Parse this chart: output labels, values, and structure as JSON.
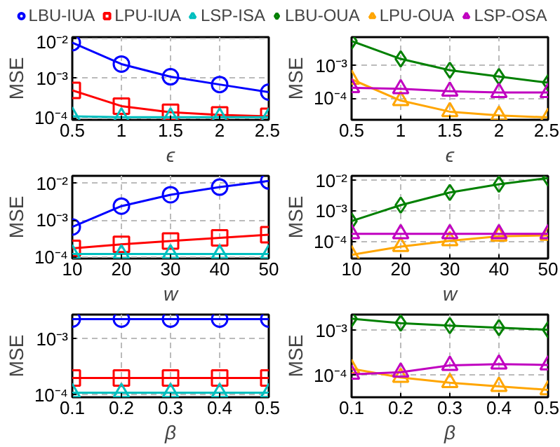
{
  "chart_data": [
    {
      "type": "line",
      "xlabel": "ϵ",
      "ylabel": "MSE",
      "log": "y",
      "grid": true,
      "legend": "top",
      "x": [
        0.5,
        1,
        1.5,
        2,
        2.5
      ],
      "xlim": [
        0.5,
        2.5
      ],
      "xticks": [
        0.5,
        1,
        1.5,
        2,
        2.5
      ],
      "ylim": [
        9e-05,
        0.011
      ],
      "yticks": [
        {
          "value": 0.0001,
          "label": "10⁻⁴"
        },
        {
          "value": 0.001,
          "label": "10⁻³"
        },
        {
          "value": 0.01,
          "label": "10⁻²"
        }
      ],
      "series": [
        {
          "name": "LBU-IUA",
          "color": "#0000ff",
          "marker": "circle",
          "values": [
            0.008,
            0.0023,
            0.0011,
            0.0007,
            0.00045
          ]
        },
        {
          "name": "LPU-IUA",
          "color": "#ff0000",
          "marker": "square",
          "values": [
            0.0005,
            0.0002,
            0.00014,
            0.00012,
            0.00011
          ]
        },
        {
          "name": "LSP-ISA",
          "color": "#00bfbf",
          "marker": "triangle",
          "values": [
            0.00011,
            0.000105,
            0.000105,
            0.000105,
            0.000105
          ]
        }
      ]
    },
    {
      "type": "line",
      "xlabel": "ϵ",
      "ylabel": "MSE",
      "log": "y",
      "grid": true,
      "legend": "top",
      "x": [
        0.5,
        1,
        1.5,
        2,
        2.5
      ],
      "xlim": [
        0.5,
        2.5
      ],
      "xticks": [
        0.5,
        1,
        1.5,
        2,
        2.5
      ],
      "ylim": [
        2.2e-05,
        0.0074
      ],
      "yticks": [
        {
          "value": 0.0001,
          "label": "10⁻⁴"
        },
        {
          "value": 0.001,
          "label": "10⁻³"
        }
      ],
      "series": [
        {
          "name": "LBU-OUA",
          "color": "#008000",
          "marker": "diamond",
          "values": [
            0.0056,
            0.0016,
            0.00072,
            0.00046,
            0.0003
          ]
        },
        {
          "name": "LPU-OUA",
          "color": "#ffa500",
          "marker": "triangle",
          "values": [
            0.00038,
            8.5e-05,
            3.9e-05,
            3e-05,
            2.6e-05
          ]
        },
        {
          "name": "LSP-OSA",
          "color": "#c000c0",
          "marker": "triangle",
          "values": [
            0.00021,
            0.000195,
            0.000165,
            0.00015,
            0.00015
          ]
        }
      ]
    },
    {
      "type": "line",
      "xlabel": "w",
      "ylabel": "MSE",
      "log": "y",
      "grid": true,
      "x": [
        10,
        20,
        30,
        40,
        50
      ],
      "xlim": [
        10,
        50
      ],
      "xticks": [
        10,
        20,
        30,
        40,
        50
      ],
      "ylim": [
        9e-05,
        0.016
      ],
      "yticks": [
        {
          "value": 0.0001,
          "label": "10⁻⁴"
        },
        {
          "value": 0.001,
          "label": "10⁻³"
        },
        {
          "value": 0.01,
          "label": "10⁻²"
        }
      ],
      "series": [
        {
          "color": "#0000ff",
          "marker": "circle",
          "values": [
            0.00065,
            0.0024,
            0.0049,
            0.0079,
            0.0116
          ]
        },
        {
          "color": "#ff0000",
          "marker": "square",
          "values": [
            0.00017,
            0.00022,
            0.00027,
            0.00033,
            0.0004
          ]
        },
        {
          "color": "#00bfbf",
          "marker": "triangle",
          "values": [
            0.00012,
            0.00012,
            0.00012,
            0.00012,
            0.00012
          ]
        }
      ]
    },
    {
      "type": "line",
      "xlabel": "w",
      "ylabel": "MSE",
      "log": "y",
      "grid": true,
      "x": [
        10,
        20,
        30,
        40,
        50
      ],
      "xlim": [
        10,
        50
      ],
      "xticks": [
        10,
        20,
        30,
        40,
        50
      ],
      "ylim": [
        2.9e-05,
        0.013
      ],
      "yticks": [
        {
          "value": 0.0001,
          "label": "10⁻⁴"
        },
        {
          "value": 0.001,
          "label": "10⁻³"
        },
        {
          "value": 0.01,
          "label": "10⁻²"
        }
      ],
      "series": [
        {
          "color": "#008000",
          "marker": "diamond",
          "values": [
            0.00046,
            0.0015,
            0.0038,
            0.007,
            0.011
          ]
        },
        {
          "color": "#ffa500",
          "marker": "triangle",
          "values": [
            3.8e-05,
            7e-05,
            0.000107,
            0.00015,
            0.00016
          ]
        },
        {
          "color": "#c000c0",
          "marker": "triangle",
          "values": [
            0.00018,
            0.00018,
            0.00018,
            0.00018,
            0.00018
          ]
        }
      ]
    },
    {
      "type": "line",
      "xlabel": "β",
      "ylabel": "MSE",
      "log": "y",
      "grid": true,
      "x": [
        0.1,
        0.2,
        0.3,
        0.4,
        0.5
      ],
      "xlim": [
        0.1,
        0.5
      ],
      "xticks": [
        0.1,
        0.2,
        0.3,
        0.4,
        0.5
      ],
      "ylim": [
        9.1e-05,
        0.0027
      ],
      "yticks": [
        {
          "value": 0.0001,
          "label": "10⁻⁴"
        },
        {
          "value": 0.001,
          "label": "10⁻³"
        }
      ],
      "series": [
        {
          "color": "#0000ff",
          "marker": "circle",
          "values": [
            0.00224,
            0.00224,
            0.00224,
            0.00224,
            0.00224
          ]
        },
        {
          "color": "#ff0000",
          "marker": "square",
          "values": [
            0.0002,
            0.0002,
            0.0002,
            0.0002,
            0.0002
          ]
        },
        {
          "color": "#00bfbf",
          "marker": "triangle",
          "values": [
            0.00011,
            0.00011,
            0.00011,
            0.00011,
            0.00011
          ]
        }
      ]
    },
    {
      "type": "line",
      "xlabel": "β",
      "ylabel": "MSE",
      "log": "y",
      "grid": true,
      "x": [
        0.1,
        0.2,
        0.3,
        0.4,
        0.5
      ],
      "xlim": [
        0.1,
        0.5
      ],
      "xticks": [
        0.1,
        0.2,
        0.3,
        0.4,
        0.5
      ],
      "ylim": [
        3.2e-05,
        0.0023
      ],
      "yticks": [
        {
          "value": 0.0001,
          "label": "10⁻⁴"
        },
        {
          "value": 0.001,
          "label": "10⁻³"
        }
      ],
      "series": [
        {
          "color": "#008000",
          "marker": "diamond",
          "values": [
            0.00186,
            0.00148,
            0.0013,
            0.00117,
            0.00105
          ]
        },
        {
          "color": "#ffa500",
          "marker": "triangle",
          "values": [
            0.00014,
            8.9e-05,
            6.8e-05,
            5.6e-05,
            4.7e-05
          ]
        },
        {
          "color": "#c000c0",
          "marker": "triangle",
          "values": [
            0.000105,
            0.000117,
            0.000166,
            0.000178,
            0.00017
          ]
        }
      ]
    }
  ]
}
